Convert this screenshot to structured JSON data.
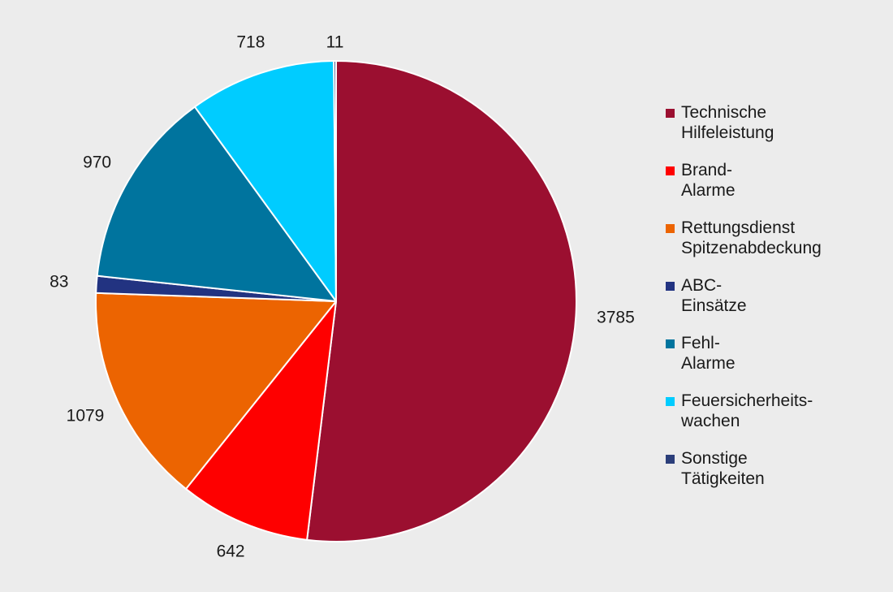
{
  "chart_data": {
    "type": "pie",
    "slices": [
      {
        "label": [
          "Technische",
          "Hilfeleistung"
        ],
        "value": 3785,
        "value_label": "3785",
        "color": "#9b0f30"
      },
      {
        "label": [
          "Brand-",
          "Alarme"
        ],
        "value": 642,
        "value_label": "642",
        "color": "#fe0000"
      },
      {
        "label": [
          "Rettungsdienst",
          "Spitzenabdeckung"
        ],
        "value": 1079,
        "value_label": "1079",
        "color": "#ec6401"
      },
      {
        "label": [
          "ABC-",
          "Einsätze"
        ],
        "value": 83,
        "value_label": "83",
        "color": "#223381"
      },
      {
        "label": [
          "Fehl-",
          "Alarme"
        ],
        "value": 970,
        "value_label": "970",
        "color": "#00749e"
      },
      {
        "label": [
          "Feuersicherheits-",
          "wachen"
        ],
        "value": 718,
        "value_label": "718",
        "color": "#00ccff"
      },
      {
        "label": [
          "Sonstige",
          "Tätigkeiten"
        ],
        "value": 11,
        "value_label": "11",
        "color": "#2b3e7a"
      }
    ],
    "start_angle": "12 o'clock",
    "direction": "clockwise",
    "legend_position": "right"
  },
  "colors": {
    "background": "#ececec",
    "slice_border": "#ffffff",
    "text": "#1a1a1a"
  }
}
